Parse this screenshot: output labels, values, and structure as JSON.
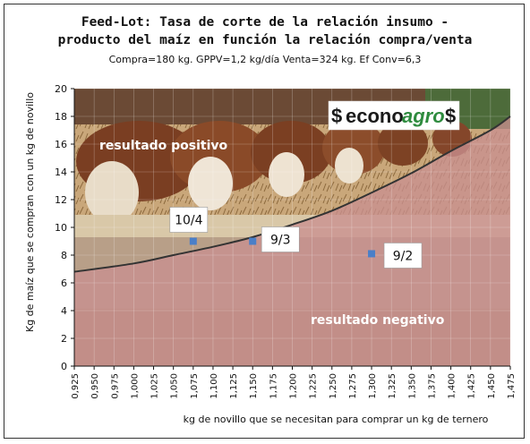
{
  "chart_data": {
    "type": "scatter",
    "title": "Feed-Lot: Tasa de corte de la relación insumo - producto del maíz en función la relación compra/venta",
    "title_line1": "Feed-Lot: Tasa de corte de la relación insumo -",
    "title_line2": "producto del maíz en función la relación compra/venta",
    "subtitle": "Compra=180 kg. GPPV=1,2 kg/día Venta=324 kg. Ef Conv=6,3",
    "xlabel": "kg de novillo que se necesitan para comprar un kg de ternero",
    "ylabel": "Kg de maíz que se compran con un kg de novillo",
    "xlim": [
      0.925,
      1.475
    ],
    "ylim": [
      0,
      20
    ],
    "x_ticks": [
      "0,925",
      "0,950",
      "0,975",
      "1,000",
      "1,025",
      "1,050",
      "1,075",
      "1,100",
      "1,125",
      "1,150",
      "1,175",
      "1,200",
      "1,225",
      "1,250",
      "1,275",
      "1,300",
      "1,325",
      "1,350",
      "1,375",
      "1,400",
      "1,425",
      "1,450",
      "1,475"
    ],
    "y_ticks": [
      "0",
      "2",
      "4",
      "6",
      "8",
      "10",
      "12",
      "14",
      "16",
      "18",
      "20"
    ],
    "grid": true,
    "cutoff_curve": {
      "x": [
        0.925,
        1.0,
        1.05,
        1.1,
        1.15,
        1.2,
        1.25,
        1.3,
        1.35,
        1.4,
        1.45,
        1.475
      ],
      "y": [
        6.8,
        7.4,
        8.0,
        8.6,
        9.3,
        10.2,
        11.2,
        12.5,
        13.9,
        15.5,
        17.0,
        18.0
      ]
    },
    "points": [
      {
        "label": "10/4",
        "x": 1.075,
        "y": 9.0
      },
      {
        "label": "9/3",
        "x": 1.15,
        "y": 9.0
      },
      {
        "label": "9/2",
        "x": 1.3,
        "y": 8.1
      }
    ],
    "region_labels": {
      "above": "resultado positivo",
      "below": "resultado negativo"
    },
    "colors": {
      "point": "#4a7fc8",
      "curve": "#333333",
      "negative_area": "#c98f8f"
    }
  },
  "logo": {
    "left_symbol": "$",
    "brand_part1": "econo",
    "brand_part2": "agro",
    "right_symbol": "$"
  }
}
